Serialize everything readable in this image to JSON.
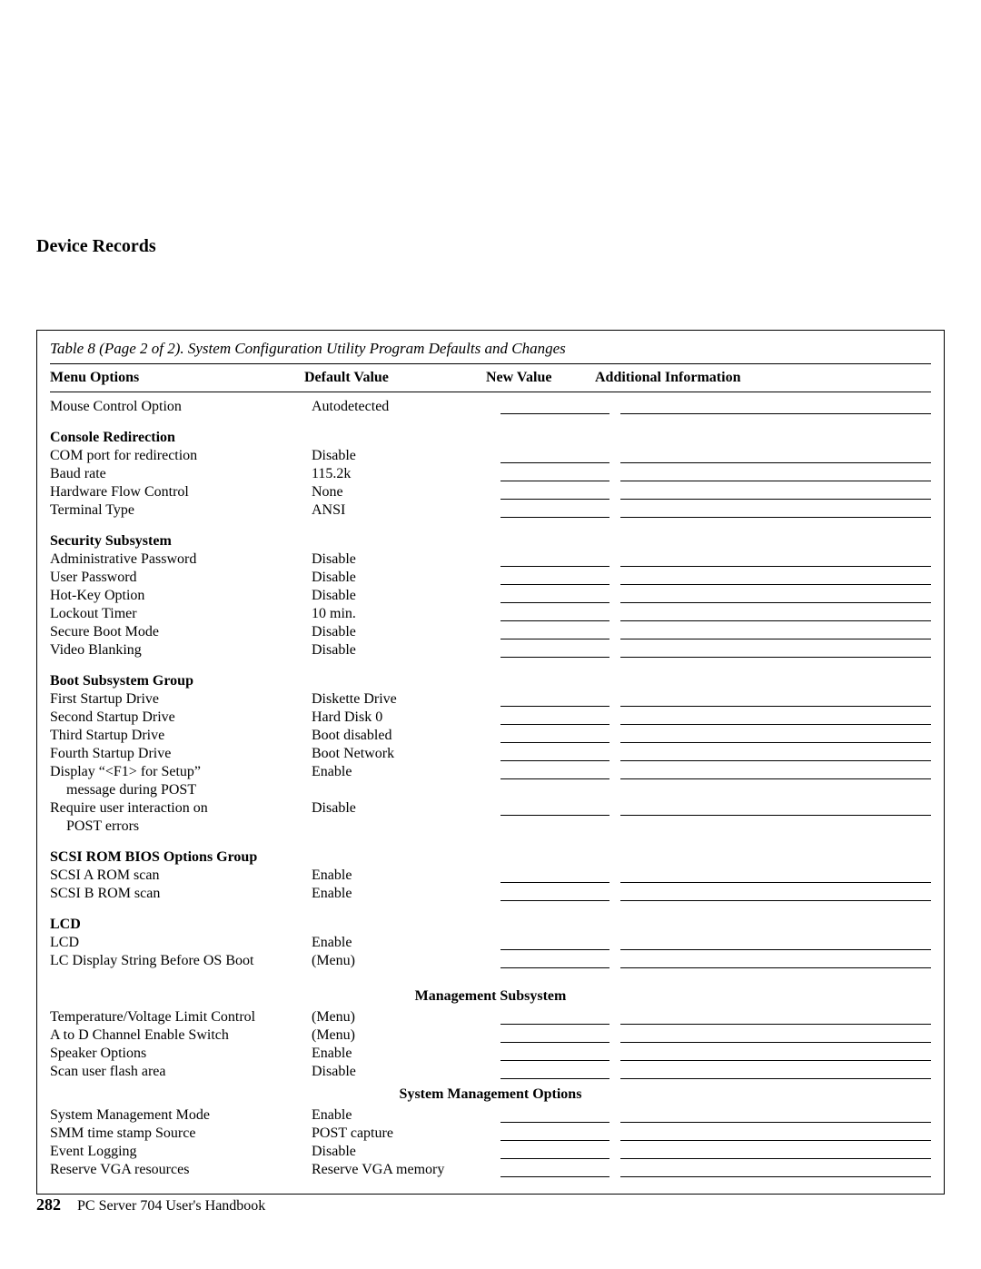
{
  "page": {
    "section_title": "Device Records",
    "page_number": "282",
    "book_title": "PC Server 704 User's Handbook"
  },
  "table": {
    "caption": "Table 8 (Page 2 of 2). System Configuration Utility Program Defaults and Changes",
    "headers": {
      "menu": "Menu Options",
      "def": "Default Value",
      "newv": "New Value",
      "add": "Additional Information"
    },
    "colors": {
      "text": "#000000",
      "background": "#ffffff",
      "border": "#000000"
    },
    "font": {
      "family": "Times New Roman",
      "body_size_pt": 12,
      "title_size_pt": 15,
      "weight_normal": "400",
      "weight_bold": "700"
    },
    "groups": [
      {
        "title": null,
        "rows": [
          {
            "menu": "Mouse Control Option",
            "def": "Autodetected",
            "fill": true
          }
        ]
      },
      {
        "title": "Console Redirection",
        "rows": [
          {
            "menu": "COM port for redirection",
            "def": "Disable",
            "fill": true
          },
          {
            "menu": "Baud rate",
            "def": "115.2k",
            "fill": true
          },
          {
            "menu": "Hardware Flow Control",
            "def": "None",
            "fill": true
          },
          {
            "menu": "Terminal Type",
            "def": "ANSI",
            "fill": true
          }
        ]
      },
      {
        "title": "Security Subsystem",
        "rows": [
          {
            "menu": "Administrative Password",
            "def": "Disable",
            "fill": true
          },
          {
            "menu": "User Password",
            "def": "Disable",
            "fill": true
          },
          {
            "menu": "Hot-Key Option",
            "def": "Disable",
            "fill": true
          },
          {
            "menu": "Lockout Timer",
            "def": "10 min.",
            "fill": true
          },
          {
            "menu": "Secure Boot Mode",
            "def": "Disable",
            "fill": true
          },
          {
            "menu": "Video Blanking",
            "def": "Disable",
            "fill": true
          }
        ]
      },
      {
        "title": "Boot Subsystem Group",
        "rows": [
          {
            "menu": "First Startup Drive",
            "def": "Diskette Drive",
            "fill": true
          },
          {
            "menu": "Second Startup Drive",
            "def": "Hard Disk 0",
            "fill": true
          },
          {
            "menu": "Third Startup Drive",
            "def": "Boot disabled",
            "fill": true
          },
          {
            "menu": "Fourth Startup Drive",
            "def": "Boot Network",
            "fill": true
          },
          {
            "menu": "Display “<F1> for Setup”",
            "def": "Enable",
            "fill": true
          },
          {
            "menu_cont": "message during POST"
          },
          {
            "menu": "Require user interaction on",
            "def": "Disable",
            "fill": true
          },
          {
            "menu_cont": "POST errors"
          }
        ]
      },
      {
        "title": "SCSI ROM BIOS Options Group",
        "rows": [
          {
            "menu": "SCSI A ROM scan",
            "def": "Enable",
            "fill": true
          },
          {
            "menu": "SCSI B ROM scan",
            "def": "Enable",
            "fill": true
          }
        ]
      },
      {
        "title": "LCD",
        "rows": [
          {
            "menu": "LCD",
            "def": "Enable",
            "fill": true
          },
          {
            "menu": "LC Display String Before OS Boot",
            "def": "(Menu)",
            "fill": true
          }
        ]
      },
      {
        "center_heading": "Management Subsystem",
        "rows": [
          {
            "menu": "Temperature/Voltage Limit Control",
            "def": "(Menu)",
            "fill": true
          },
          {
            "menu": "A to D Channel Enable Switch",
            "def": "(Menu)",
            "fill": true
          },
          {
            "menu": "Speaker Options",
            "def": "Enable",
            "fill": true
          },
          {
            "menu": "Scan user flash area",
            "def": "Disable",
            "fill": true
          }
        ]
      },
      {
        "center_heading": "System Management Options",
        "no_top_space": true,
        "rows": [
          {
            "menu": "System Management Mode",
            "def": "Enable",
            "fill": true
          },
          {
            "menu": "SMM time stamp Source",
            "def": "POST capture",
            "fill": true
          },
          {
            "menu": "Event Logging",
            "def": "Disable",
            "fill": true
          },
          {
            "menu": "Reserve VGA resources",
            "def": "Reserve VGA memory",
            "fill": true
          }
        ]
      }
    ]
  }
}
